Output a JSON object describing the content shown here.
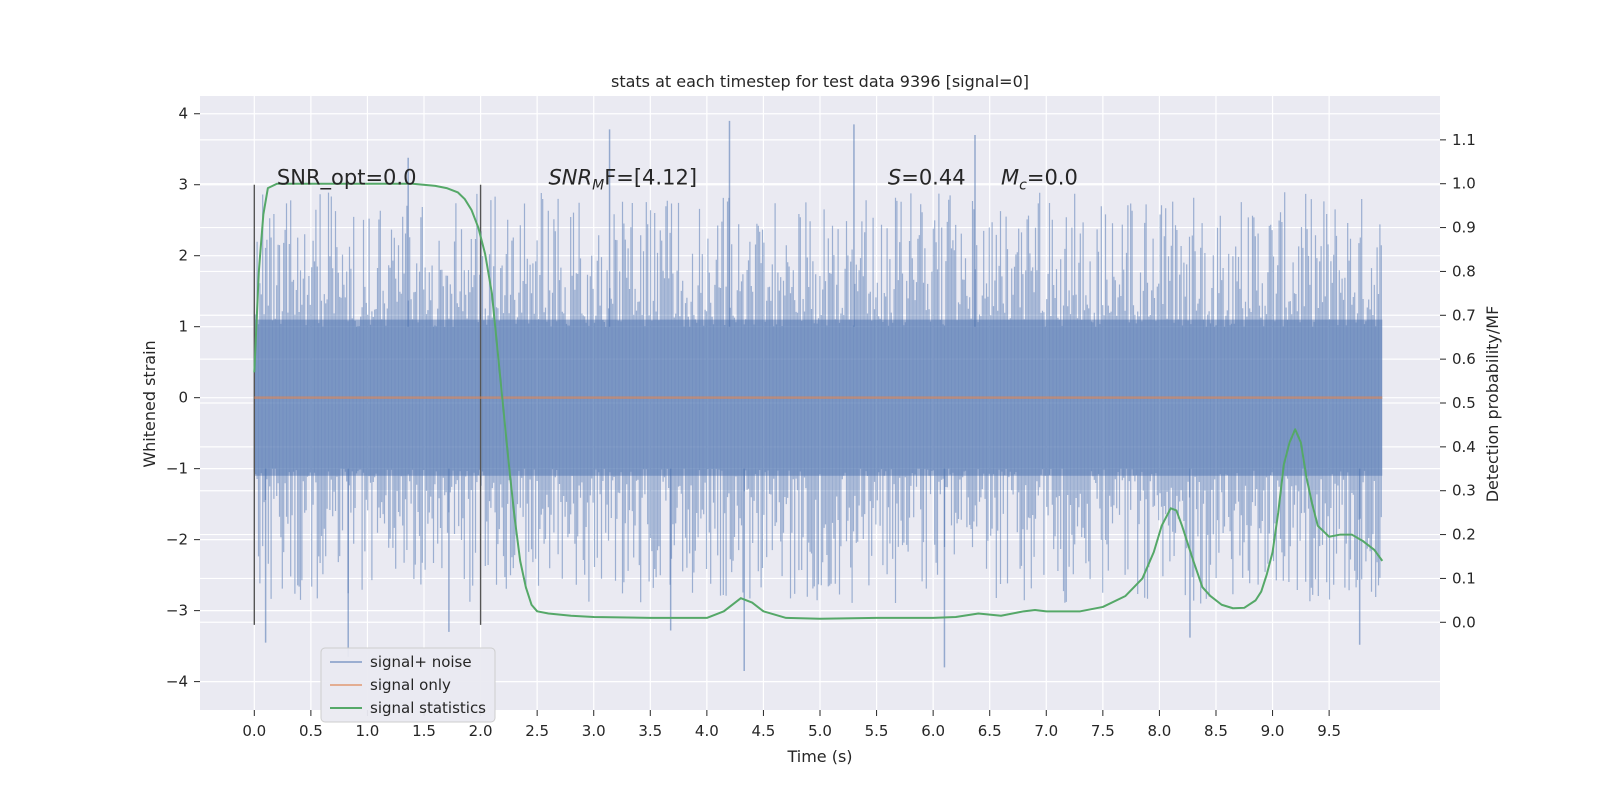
{
  "chart_data": {
    "type": "line",
    "title": "stats at each timestep for test data 9396 [signal=0]",
    "xlabel": "Time (s)",
    "ylabel": "Whitened strain",
    "y2label": "Detection probability/MF",
    "xlim": [
      -0.48,
      10.48
    ],
    "ylim": [
      -4.4,
      4.25
    ],
    "y2lim": [
      -0.2,
      1.2
    ],
    "x_ticks": [
      "0.0",
      "0.5",
      "1.0",
      "1.5",
      "2.0",
      "2.5",
      "3.0",
      "3.5",
      "4.0",
      "4.5",
      "5.0",
      "5.5",
      "6.0",
      "6.5",
      "7.0",
      "7.5",
      "8.0",
      "8.5",
      "9.0",
      "9.5"
    ],
    "y_ticks": [
      "4",
      "3",
      "2",
      "1",
      "0",
      "−1",
      "−2",
      "−3",
      "−4"
    ],
    "y2_ticks": [
      "1.1",
      "1.0",
      "0.9",
      "0.8",
      "0.7",
      "0.6",
      "0.5",
      "0.4",
      "0.3",
      "0.2",
      "0.1",
      "0.0"
    ],
    "grid": true,
    "legend_position": "lower-left",
    "noise_band": {
      "x_range": [
        0.0,
        9.97
      ],
      "core": [
        -1.1,
        1.1
      ],
      "typical_peak": [
        -2.5,
        2.5
      ]
    },
    "noise_extremes": [
      {
        "x": 0.1,
        "y": -3.45
      },
      {
        "x": 0.83,
        "y": -3.65
      },
      {
        "x": 1.36,
        "y": 3.38
      },
      {
        "x": 1.72,
        "y": -3.3
      },
      {
        "x": 3.14,
        "y": 3.78
      },
      {
        "x": 3.68,
        "y": -3.28
      },
      {
        "x": 4.2,
        "y": 3.9
      },
      {
        "x": 4.33,
        "y": -3.85
      },
      {
        "x": 5.3,
        "y": 3.85
      },
      {
        "x": 6.1,
        "y": -3.8
      },
      {
        "x": 6.37,
        "y": 3.7
      },
      {
        "x": 8.27,
        "y": -3.38
      },
      {
        "x": 9.77,
        "y": -3.48
      }
    ],
    "vertical_markers": [
      {
        "x": 0.0,
        "ymin": -3.2,
        "ymax": 3.0
      },
      {
        "x": 2.0,
        "ymin": -3.2,
        "ymax": 3.0
      }
    ],
    "series": [
      {
        "name": "signal+ noise",
        "color": "#4c72b0"
      },
      {
        "name": "signal only",
        "color": "#dd8452",
        "x": [
          0.0,
          9.97
        ],
        "y": [
          0.0,
          0.0
        ]
      },
      {
        "name": "signal statistics",
        "color": "#55a868",
        "axis": "right",
        "x": [
          0.0,
          0.04,
          0.08,
          0.12,
          0.2,
          0.3,
          0.5,
          0.8,
          1.0,
          1.2,
          1.4,
          1.6,
          1.7,
          1.8,
          1.86,
          1.92,
          1.98,
          2.04,
          2.1,
          2.15,
          2.2,
          2.25,
          2.3,
          2.35,
          2.4,
          2.45,
          2.5,
          2.6,
          2.8,
          3.0,
          3.5,
          4.0,
          4.15,
          4.3,
          4.4,
          4.5,
          4.7,
          5.0,
          5.5,
          6.0,
          6.2,
          6.4,
          6.6,
          6.8,
          6.9,
          7.0,
          7.3,
          7.5,
          7.7,
          7.85,
          7.95,
          8.02,
          8.1,
          8.15,
          8.2,
          8.3,
          8.38,
          8.45,
          8.55,
          8.65,
          8.75,
          8.85,
          8.9,
          8.95,
          9.0,
          9.05,
          9.1,
          9.15,
          9.2,
          9.25,
          9.3,
          9.35,
          9.4,
          9.5,
          9.6,
          9.7,
          9.8,
          9.9,
          9.97
        ],
        "y": [
          0.57,
          0.8,
          0.93,
          0.99,
          1.0,
          1.0,
          1.0,
          1.0,
          1.0,
          1.0,
          1.0,
          0.995,
          0.99,
          0.98,
          0.965,
          0.94,
          0.9,
          0.84,
          0.75,
          0.62,
          0.49,
          0.36,
          0.24,
          0.14,
          0.08,
          0.04,
          0.025,
          0.02,
          0.015,
          0.012,
          0.01,
          0.01,
          0.025,
          0.055,
          0.045,
          0.025,
          0.01,
          0.008,
          0.01,
          0.01,
          0.012,
          0.02,
          0.015,
          0.025,
          0.028,
          0.025,
          0.025,
          0.035,
          0.06,
          0.1,
          0.16,
          0.22,
          0.26,
          0.255,
          0.22,
          0.14,
          0.08,
          0.06,
          0.04,
          0.032,
          0.033,
          0.05,
          0.07,
          0.11,
          0.16,
          0.25,
          0.36,
          0.41,
          0.44,
          0.41,
          0.33,
          0.27,
          0.22,
          0.195,
          0.2,
          0.2,
          0.185,
          0.165,
          0.14
        ]
      }
    ],
    "annotations": [
      {
        "kind": "plain",
        "text": "SNR_opt=0.0",
        "x": 0.2,
        "y": 3.0
      },
      {
        "kind": "sub",
        "base": "SNR",
        "sub": "M",
        "rest": "F=[4.12]",
        "x": 2.6,
        "y": 3.0
      },
      {
        "kind": "plain-italic",
        "italic": "S",
        "rest": "=0.44",
        "x": 5.6,
        "y": 3.0
      },
      {
        "kind": "sub",
        "base": "M",
        "sub": "c",
        "rest": "=0.0",
        "x": 6.6,
        "y": 3.0
      }
    ]
  }
}
